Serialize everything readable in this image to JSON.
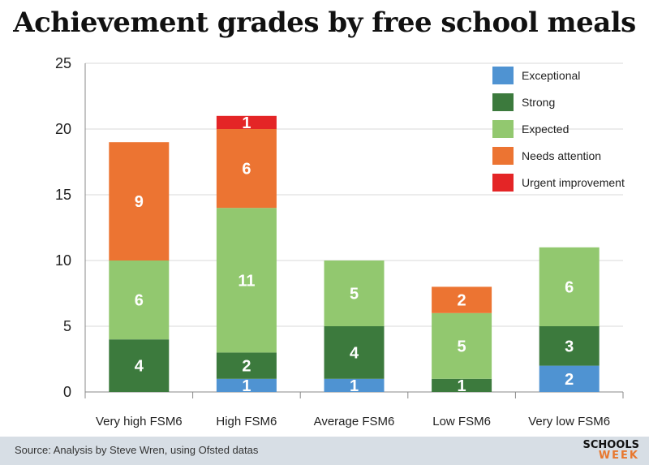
{
  "title": "Achievement grades by free school meals",
  "source": "Source: Analysis by Steve Wren, using Ofsted datas",
  "logo": {
    "top": "SCHOOLS",
    "bottom": "WEEK"
  },
  "colors": {
    "Exceptional": "#4f93d2",
    "Strong": "#3c7a3d",
    "Expected": "#92c86f",
    "Needs attention": "#ec7432",
    "Urgent improvement": "#e42526"
  },
  "chart_data": {
    "type": "bar",
    "stacked": true,
    "title": "Achievement grades by free school meals",
    "categories": [
      "Very high FSM6",
      "High FSM6",
      "Average FSM6",
      "Low FSM6",
      "Very low FSM6"
    ],
    "series": [
      {
        "name": "Exceptional",
        "values": [
          0,
          1,
          1,
          0,
          2
        ]
      },
      {
        "name": "Strong",
        "values": [
          4,
          2,
          4,
          1,
          3
        ]
      },
      {
        "name": "Expected",
        "values": [
          6,
          11,
          5,
          5,
          6
        ]
      },
      {
        "name": "Needs attention",
        "values": [
          9,
          6,
          0,
          2,
          0
        ]
      },
      {
        "name": "Urgent improvement",
        "values": [
          0,
          1,
          0,
          0,
          0
        ]
      }
    ],
    "ylim": [
      0,
      25
    ],
    "yticks": [
      0,
      5,
      10,
      15,
      20,
      25
    ],
    "grid": true,
    "legend_position": "top-right",
    "xlabel": "",
    "ylabel": ""
  }
}
